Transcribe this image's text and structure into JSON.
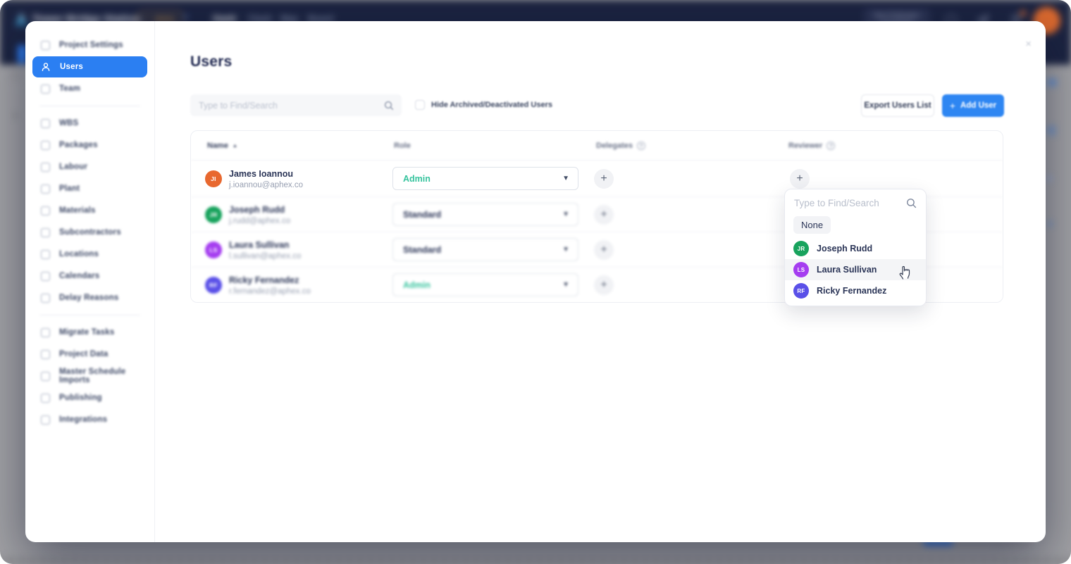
{
  "backdrop": {
    "app_title": "Tower Bridge Station",
    "admin_badge": "Admin",
    "nav_tabs": [
      "Gantt",
      "Clash",
      "Map",
      "Board"
    ],
    "next_publication_label": "Next Publication",
    "colors": {
      "topbar": "#1C2441",
      "badge_orange": "#E2A44C",
      "avatar_orange": "#DD6A2E",
      "scrollbar_blue": "#2E6FD6"
    }
  },
  "modal": {
    "close_label": "×",
    "sidebar": {
      "groups": [
        {
          "items": [
            {
              "label": "Project Settings",
              "icon": "gear-icon"
            },
            {
              "label": "Users",
              "icon": "user-icon",
              "active": true
            },
            {
              "label": "Team",
              "icon": "team-icon"
            }
          ]
        },
        {
          "items": [
            {
              "label": "WBS",
              "icon": "wbs-icon"
            },
            {
              "label": "Packages",
              "icon": "packages-icon"
            },
            {
              "label": "Labour",
              "icon": "labour-icon"
            },
            {
              "label": "Plant",
              "icon": "plant-icon"
            },
            {
              "label": "Materials",
              "icon": "materials-icon"
            },
            {
              "label": "Subcontractors",
              "icon": "subcontractors-icon"
            },
            {
              "label": "Locations",
              "icon": "locations-icon"
            },
            {
              "label": "Calendars",
              "icon": "calendars-icon"
            },
            {
              "label": "Delay Reasons",
              "icon": "delay-reasons-icon"
            }
          ]
        },
        {
          "items": [
            {
              "label": "Migrate Tasks",
              "icon": "migrate-tasks-icon"
            },
            {
              "label": "Project Data",
              "icon": "project-data-icon"
            },
            {
              "label": "Master Schedule Imports",
              "icon": "master-schedule-imports-icon"
            },
            {
              "label": "Publishing",
              "icon": "publishing-icon"
            },
            {
              "label": "Integrations",
              "icon": "integrations-icon"
            }
          ]
        }
      ]
    },
    "page": {
      "title": "Users",
      "search_placeholder": "Type to Find/Search",
      "hide_checkbox_label": "Hide Archived/Deactivated Users",
      "export_button": "Export Users List",
      "add_user_button": "Add User"
    },
    "table": {
      "columns": [
        "Name",
        "Role",
        "Delegates",
        "Reviewer"
      ],
      "rows": [
        {
          "initials": "JI",
          "avatar_color": "#E8682F",
          "name": "James Ioannou",
          "email": "j.ioannou@aphex.co",
          "role": "Admin",
          "role_color": "#35C39D"
        },
        {
          "initials": "JR",
          "avatar_color": "#18A35D",
          "name": "Joseph Rudd",
          "email": "j.rudd@aphex.co",
          "role": "Standard",
          "role_color": "#2B3557"
        },
        {
          "initials": "LS",
          "avatar_color": "#A53DF0",
          "name": "Laura Sullivan",
          "email": "l.sullivan@aphex.co",
          "role": "Standard",
          "role_color": "#2B3557"
        },
        {
          "initials": "RF",
          "avatar_color": "#5A50E8",
          "name": "Ricky Fernandez",
          "email": "r.fernandez@aphex.co",
          "role": "Admin",
          "role_color": "#35C39D"
        }
      ]
    },
    "reviewer_dropdown": {
      "search_placeholder": "Type to Find/Search",
      "none_option": "None",
      "options": [
        {
          "initials": "JR",
          "avatar_color": "#18A35D",
          "name": "Joseph Rudd"
        },
        {
          "initials": "LS",
          "avatar_color": "#A53DF0",
          "name": "Laura Sullivan",
          "hover": true
        },
        {
          "initials": "RF",
          "avatar_color": "#5A50E8",
          "name": "Ricky Fernandez"
        }
      ]
    }
  }
}
